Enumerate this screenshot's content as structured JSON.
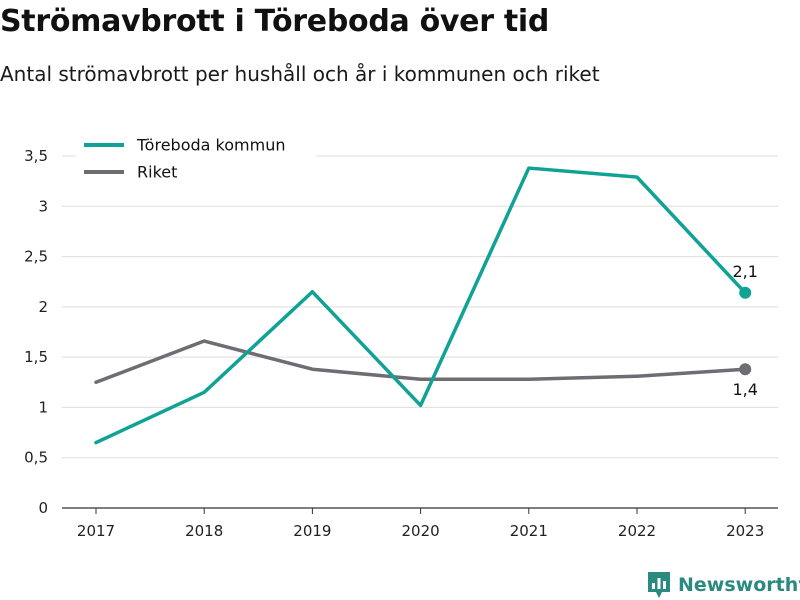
{
  "header": {
    "title": "Strömavbrott i Töreboda över tid",
    "subtitle": "Antal strömavbrott per hushåll och år i kommunen och riket"
  },
  "brand": {
    "name": "Newsworthy",
    "icon": "chart-logo-icon",
    "color": "#2a8a7f"
  },
  "chart_data": {
    "type": "line",
    "x": [
      2017,
      2018,
      2019,
      2020,
      2021,
      2022,
      2023
    ],
    "ylim": [
      0,
      3.5
    ],
    "yticks": [
      0,
      0.5,
      1,
      1.5,
      2,
      2.5,
      3,
      3.5
    ],
    "ytick_labels": [
      "0",
      "0,5",
      "1",
      "1,5",
      "2",
      "2,5",
      "3",
      "3,5"
    ],
    "xtick_labels": [
      "2017",
      "2018",
      "2019",
      "2020",
      "2021",
      "2022",
      "2023"
    ],
    "grid": true,
    "legend_position": "top-left",
    "series": [
      {
        "name": "Töreboda kommun",
        "color": "#0fa295",
        "values": [
          0.65,
          1.15,
          2.15,
          1.02,
          3.38,
          3.29,
          2.14
        ],
        "end_label": "2,1"
      },
      {
        "name": "Riket",
        "color": "#6e6d73",
        "values": [
          1.25,
          1.66,
          1.38,
          1.28,
          1.28,
          1.31,
          1.38
        ],
        "end_label": "1,4"
      }
    ]
  }
}
